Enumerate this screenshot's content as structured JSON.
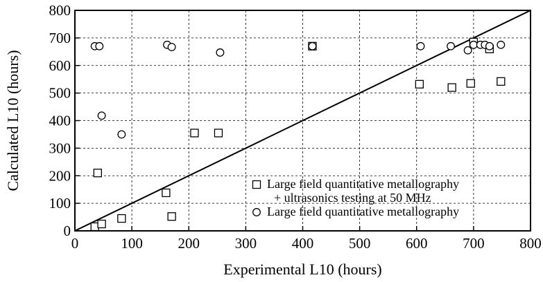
{
  "chart_data": {
    "type": "scatter",
    "xlabel": "Experimental L10 (hours)",
    "ylabel": "Calculated L10 (hours)",
    "xlim": [
      0,
      800
    ],
    "ylim": [
      0,
      800
    ],
    "xticks": [
      0,
      100,
      200,
      300,
      400,
      500,
      600,
      700,
      800
    ],
    "yticks": [
      0,
      100,
      200,
      300,
      400,
      500,
      600,
      700,
      800
    ],
    "grid": true,
    "reference_line": {
      "from": [
        0,
        0
      ],
      "to": [
        800,
        800
      ]
    },
    "legend": {
      "placement": "bottom-right",
      "entries": [
        {
          "marker": "square",
          "lines": [
            "Large field quantitative metallography",
            "+ ultrasonics testing at 50 MHz"
          ]
        },
        {
          "marker": "circle",
          "lines": [
            "Large field quantitative metallography"
          ]
        }
      ]
    },
    "series": [
      {
        "marker": "square",
        "points": [
          [
            35,
            15
          ],
          [
            40,
            210
          ],
          [
            47,
            25
          ],
          [
            82,
            45
          ],
          [
            160,
            138
          ],
          [
            170,
            52
          ],
          [
            210,
            355
          ],
          [
            252,
            355
          ],
          [
            417,
            670
          ],
          [
            605,
            532
          ],
          [
            662,
            520
          ],
          [
            695,
            535
          ],
          [
            700,
            685
          ],
          [
            728,
            660
          ],
          [
            748,
            542
          ]
        ]
      },
      {
        "marker": "circle",
        "points": [
          [
            35,
            670
          ],
          [
            43,
            670
          ],
          [
            47,
            418
          ],
          [
            82,
            350
          ],
          [
            162,
            675
          ],
          [
            170,
            667
          ],
          [
            255,
            647
          ],
          [
            417,
            670
          ],
          [
            607,
            670
          ],
          [
            660,
            670
          ],
          [
            690,
            655
          ],
          [
            700,
            675
          ],
          [
            712,
            675
          ],
          [
            720,
            675
          ],
          [
            728,
            670
          ],
          [
            748,
            675
          ]
        ]
      }
    ]
  }
}
